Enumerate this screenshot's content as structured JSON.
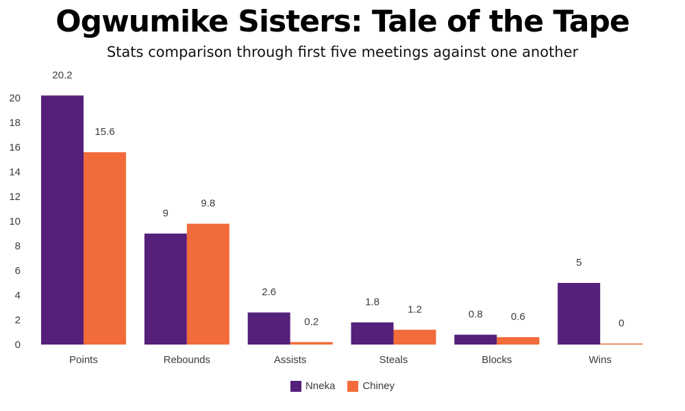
{
  "chart_data": {
    "type": "bar",
    "title": "Ogwumike Sisters: Tale of the Tape",
    "subtitle": "Stats comparison through first five meetings against one another",
    "categories": [
      "Points",
      "Rebounds",
      "Assists",
      "Steals",
      "Blocks",
      "Wins"
    ],
    "series": [
      {
        "name": "Nneka",
        "color": "#55207a",
        "values": [
          20.2,
          9,
          2.6,
          1.8,
          0.8,
          5
        ]
      },
      {
        "name": "Chiney",
        "color": "#f26b3a",
        "values": [
          15.6,
          9.8,
          0.2,
          1.2,
          0.6,
          0
        ]
      }
    ],
    "yticks": [
      0,
      2,
      4,
      6,
      8,
      10,
      12,
      14,
      16,
      18,
      20
    ],
    "ylim": [
      0,
      20.5
    ],
    "grid": false,
    "legend_position": "bottom"
  }
}
